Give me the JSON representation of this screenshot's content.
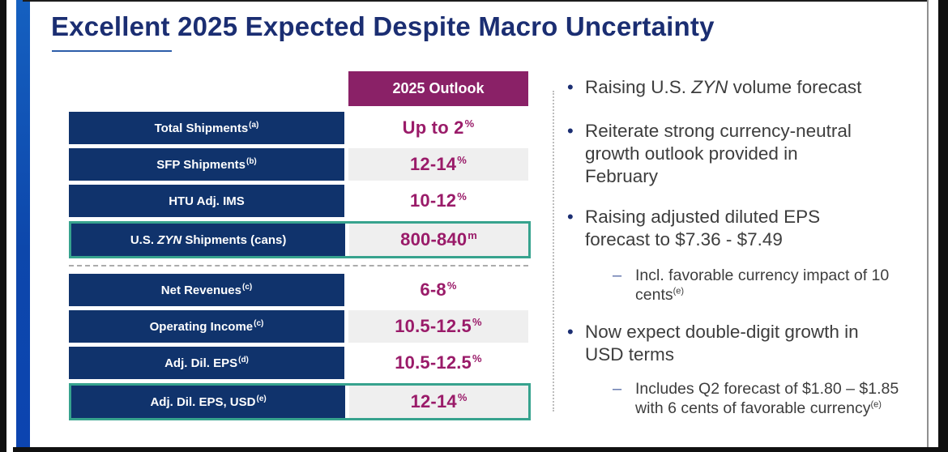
{
  "title": "Excellent 2025 Expected Despite Macro Uncertainty",
  "table": {
    "header": "2025 Outlook",
    "rows": [
      {
        "label": "Total Shipments",
        "label_sup": "(a)",
        "value": "Up to 2",
        "value_sup": "%"
      },
      {
        "label": "SFP Shipments",
        "label_sup": "(b)",
        "value": "12-14",
        "value_sup": "%"
      },
      {
        "label": "HTU Adj. IMS",
        "label_sup": "",
        "value": "10-12",
        "value_sup": "%"
      },
      {
        "label_pre": "U.S. ",
        "label_italic": "ZYN",
        "label_post": " Shipments (cans)",
        "value": "800-840",
        "value_sup": "m"
      },
      {
        "label": "Net Revenues",
        "label_sup": "(c)",
        "value": "6-8",
        "value_sup": "%"
      },
      {
        "label": "Operating Income",
        "label_sup": "(c)",
        "value": "10.5-12.5",
        "value_sup": "%"
      },
      {
        "label": "Adj. Dil. EPS",
        "label_sup": "(d)",
        "value": "10.5-12.5",
        "value_sup": "%"
      },
      {
        "label": "Adj. Dil. EPS, USD",
        "label_sup": "(e)",
        "value": "12-14",
        "value_sup": "%"
      }
    ]
  },
  "bullets": {
    "marker": "•",
    "sub_marker": "–",
    "items": [
      {
        "pre": "Raising U.S. ",
        "italic": "ZYN",
        "post": " volume forecast"
      },
      {
        "text": "Reiterate strong currency-neutral growth outlook provided in February"
      },
      {
        "text": "Raising adjusted diluted EPS forecast to $7.36 - $7.49"
      },
      {
        "text": "Incl. favorable currency impact of 10 cents",
        "sup": "(e)"
      },
      {
        "text": "Now expect double-digit growth in USD terms"
      },
      {
        "text": "Includes Q2 forecast of $1.80 – $1.85 with 6 cents of favorable currency",
        "sup": "(e)"
      }
    ]
  },
  "colors": {
    "row_navy": "#10336C",
    "header_purple": "#8A2167",
    "value_magenta": "#9A1B69",
    "highlight_teal": "#37A38E",
    "title_navy": "#1B2E72",
    "sidebar_blue": "#0F51B2"
  }
}
